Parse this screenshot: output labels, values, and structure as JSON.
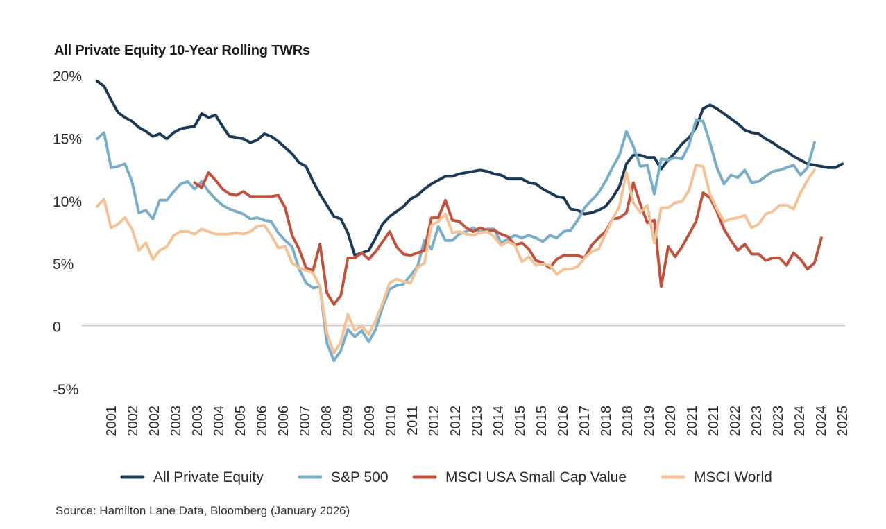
{
  "chart_data": {
    "type": "line",
    "title": "All Private Equity 10-Year Rolling TWRs",
    "ylabel": "",
    "xlabel": "",
    "ylim": [
      -5,
      20
    ],
    "y_ticks": [
      "20%",
      "15%",
      "10%",
      "5%",
      "0",
      "-5%"
    ],
    "y_tick_values": [
      20,
      15,
      10,
      5,
      0,
      -5
    ],
    "x_tick_labels": [
      "2001",
      "2002",
      "2002",
      "2003",
      "2003",
      "2004",
      "2005",
      "2006",
      "2006",
      "2007",
      "2008",
      "2009",
      "2009",
      "2010",
      "2011",
      "2012",
      "2012",
      "2013",
      "2014",
      "2015",
      "2015",
      "2016",
      "2017",
      "2018",
      "2018",
      "2019",
      "2020",
      "2021",
      "2021",
      "2022",
      "2023",
      "2023",
      "2024",
      "2024",
      "2025"
    ],
    "legend_position": "bottom",
    "series": [
      {
        "name": "All Private Equity",
        "color": "#1c3a56",
        "values": [
          19.5,
          19.1,
          18.0,
          17.0,
          16.6,
          16.3,
          15.8,
          15.5,
          15.1,
          15.3,
          14.9,
          15.4,
          15.7,
          15.8,
          15.9,
          16.9,
          16.6,
          16.8,
          15.9,
          15.1,
          15.0,
          14.9,
          14.6,
          14.8,
          15.3,
          15.1,
          14.7,
          14.2,
          13.7,
          13.0,
          12.7,
          11.5,
          10.5,
          9.6,
          8.7,
          8.5,
          7.4,
          5.6,
          5.8,
          6.0,
          7.0,
          8.1,
          8.7,
          9.1,
          9.5,
          10.1,
          10.4,
          10.9,
          11.3,
          11.6,
          11.9,
          11.9,
          12.1,
          12.2,
          12.3,
          12.4,
          12.3,
          12.1,
          12.0,
          11.7,
          11.7,
          11.7,
          11.4,
          11.3,
          10.9,
          10.6,
          10.3,
          10.2,
          9.3,
          9.2,
          8.9,
          9.0,
          9.2,
          9.5,
          10.2,
          11.1,
          12.9,
          13.6,
          13.6,
          13.4,
          13.4,
          12.5,
          13.2,
          13.8,
          14.5,
          15.0,
          15.8,
          17.3,
          17.6,
          17.3,
          16.9,
          16.5,
          16.1,
          15.6,
          15.4,
          15.3,
          14.9,
          14.6,
          14.2,
          13.9,
          13.5,
          13.2,
          12.9,
          12.8,
          12.7,
          12.6,
          12.6,
          12.9
        ]
      },
      {
        "name": "S&P 500",
        "color": "#7aaec8",
        "values": [
          14.9,
          15.4,
          12.6,
          12.7,
          12.9,
          11.5,
          9.0,
          9.2,
          8.5,
          10.0,
          10.0,
          10.7,
          11.3,
          11.5,
          10.9,
          11.5,
          10.7,
          10.1,
          9.6,
          9.3,
          9.1,
          8.9,
          8.5,
          8.6,
          8.4,
          8.3,
          7.4,
          6.8,
          6.3,
          4.5,
          3.4,
          3.0,
          3.1,
          -1.4,
          -2.8,
          -2.0,
          -0.3,
          -0.9,
          -0.4,
          -1.3,
          -0.3,
          1.5,
          2.9,
          3.2,
          3.3,
          4.0,
          4.7,
          6.8,
          6.1,
          7.9,
          6.8,
          6.8,
          7.3,
          7.5,
          7.8,
          7.5,
          7.7,
          7.7,
          6.6,
          6.9,
          7.2,
          7.0,
          7.2,
          7.0,
          6.7,
          7.2,
          7.0,
          7.5,
          7.6,
          8.4,
          9.4,
          10.0,
          10.6,
          11.5,
          12.6,
          13.6,
          15.5,
          14.3,
          12.7,
          12.8,
          10.5,
          13.3,
          13.2,
          13.4,
          13.3,
          14.4,
          16.4,
          16.3,
          14.6,
          12.6,
          11.3,
          12.0,
          11.8,
          12.4,
          11.4,
          11.5,
          11.9,
          12.3,
          12.4,
          12.6,
          12.8,
          12.0,
          12.6,
          14.6
        ]
      },
      {
        "name": "MSCI USA Small Cap Value",
        "color": "#c0533e",
        "values": [
          null,
          null,
          null,
          null,
          null,
          null,
          null,
          null,
          null,
          null,
          null,
          null,
          null,
          null,
          11.4,
          11.0,
          12.2,
          11.6,
          10.9,
          10.5,
          10.4,
          10.7,
          10.3,
          10.3,
          10.3,
          10.3,
          10.4,
          9.4,
          7.2,
          6.1,
          4.6,
          4.4,
          6.5,
          2.6,
          1.7,
          2.4,
          5.4,
          5.4,
          5.8,
          5.3,
          5.9,
          6.7,
          7.5,
          6.3,
          5.7,
          5.6,
          5.8,
          6.0,
          8.6,
          8.6,
          10.0,
          8.4,
          8.3,
          7.8,
          7.5,
          7.8,
          7.6,
          7.6,
          7.3,
          7.1,
          6.4,
          6.6,
          6.1,
          5.2,
          5.0,
          4.6,
          5.3,
          5.6,
          5.6,
          5.6,
          5.4,
          6.4,
          7.0,
          7.5,
          8.5,
          8.6,
          9.0,
          11.4,
          9.7,
          8.2,
          8.4,
          3.1,
          6.3,
          5.5,
          6.3,
          7.3,
          8.3,
          10.6,
          10.2,
          9.1,
          7.7,
          6.8,
          6.0,
          6.5,
          5.7,
          5.7,
          5.2,
          5.4,
          5.4,
          4.8,
          5.8,
          5.3,
          4.5,
          5.0,
          7.0
        ]
      },
      {
        "name": "MSCI World",
        "color": "#f2c298",
        "values": [
          9.5,
          10.1,
          7.8,
          8.1,
          8.6,
          7.7,
          6.0,
          6.6,
          5.3,
          6.0,
          6.3,
          7.2,
          7.5,
          7.5,
          7.3,
          7.7,
          7.5,
          7.3,
          7.3,
          7.3,
          7.4,
          7.3,
          7.5,
          7.9,
          8.0,
          7.2,
          6.2,
          6.3,
          5.0,
          4.6,
          4.4,
          4.2,
          3.1,
          -0.6,
          -2.2,
          -1.3,
          0.9,
          -0.4,
          0.0,
          -0.7,
          0.4,
          1.8,
          3.4,
          3.7,
          3.5,
          3.4,
          4.6,
          5.0,
          8.0,
          8.3,
          8.9,
          7.4,
          7.5,
          7.3,
          7.2,
          7.4,
          7.5,
          7.1,
          6.4,
          6.7,
          6.4,
          5.1,
          5.5,
          4.8,
          4.9,
          4.8,
          4.1,
          4.5,
          4.5,
          4.7,
          5.4,
          5.9,
          6.1,
          7.3,
          8.5,
          9.5,
          12.2,
          9.8,
          9.0,
          9.6,
          6.6,
          9.4,
          9.4,
          9.8,
          9.9,
          10.8,
          12.8,
          12.7,
          10.5,
          9.3,
          8.3,
          8.5,
          8.6,
          8.8,
          7.8,
          8.1,
          8.9,
          9.1,
          9.6,
          9.6,
          9.3,
          10.6,
          11.6,
          12.4
        ]
      }
    ],
    "source": "Source: Hamilton Lane Data, Bloomberg (January 2026)"
  }
}
